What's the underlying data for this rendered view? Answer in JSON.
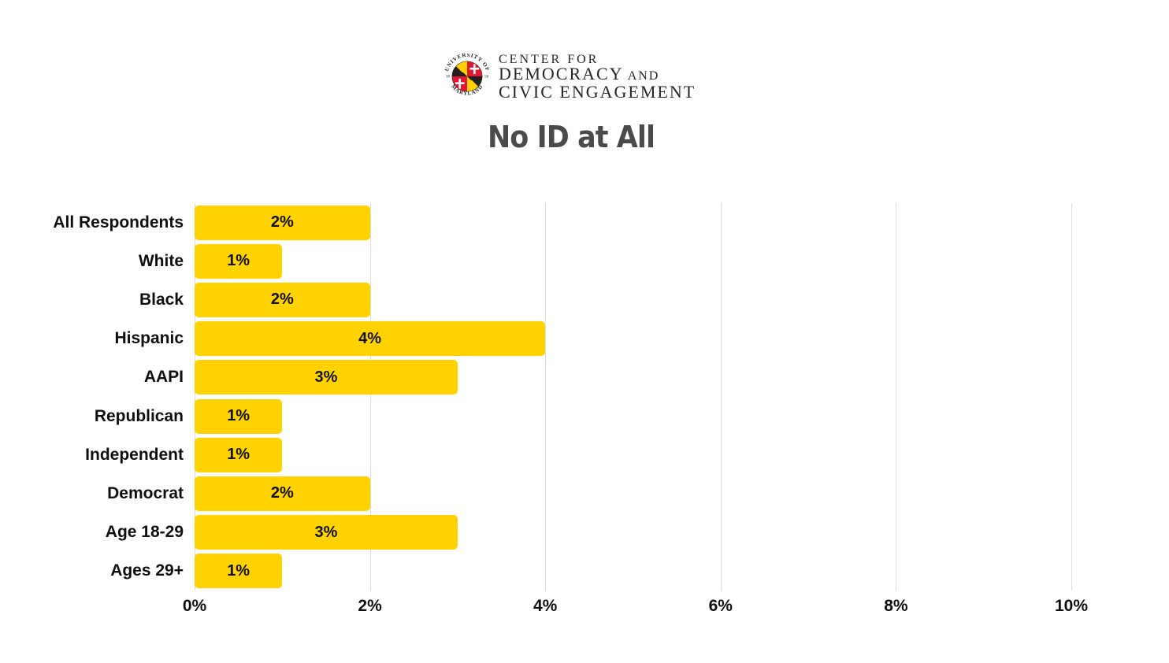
{
  "header": {
    "logo": {
      "seal_top": "UNIVERSITY OF",
      "seal_bottom": "MARYLAND",
      "seal_year_left": "18",
      "seal_year_right": "56",
      "line1": "CENTER FOR",
      "line2_main": "DEMOCRACY",
      "line2_small": " AND",
      "line3": "CIVIC ENGAGEMENT"
    },
    "title": "No ID at All"
  },
  "chart_data": {
    "type": "bar",
    "orientation": "horizontal",
    "title": "No ID at All",
    "categories": [
      "All Respondents",
      "White",
      "Black",
      "Hispanic",
      "AAPI",
      "Republican",
      "Independent",
      "Democrat",
      "Age 18-29",
      "Ages 29+"
    ],
    "values": [
      2,
      1,
      2,
      4,
      3,
      1,
      1,
      2,
      3,
      1
    ],
    "value_labels": [
      "2%",
      "1%",
      "2%",
      "4%",
      "3%",
      "1%",
      "1%",
      "2%",
      "3%",
      "1%"
    ],
    "x_ticks": [
      "0%",
      "2%",
      "4%",
      "6%",
      "8%",
      "10%"
    ],
    "xlim": [
      0,
      10
    ],
    "xlabel": "",
    "ylabel": "",
    "grid": true,
    "legend": false,
    "bar_color": "#FFD200",
    "gridline_color": "#dcdcdc",
    "value_label_position": "center-inside"
  },
  "colors": {
    "bar_gold": "#FFD200",
    "seal_red": "#E21833",
    "seal_black": "#231F20",
    "title_gray": "#4a4a4a",
    "label_black": "#0f0f0f",
    "gridline_gray": "#dcdcdc"
  }
}
